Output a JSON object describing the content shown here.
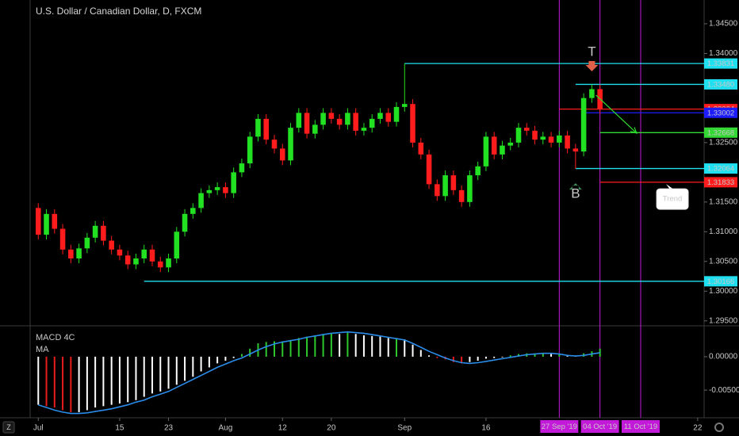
{
  "chart_data": [
    {
      "type": "candlestick",
      "title": "U.S. Dollar / Canadian Dollar, D, FXCM",
      "colors": {
        "up": "#22e022",
        "down": "#ff1c1c"
      },
      "open": [
        1.314,
        1.3095,
        1.313,
        1.3105,
        1.307,
        1.3055,
        1.3072,
        1.309,
        1.311,
        1.3085,
        1.307,
        1.306,
        1.3045,
        1.3055,
        1.307,
        1.305,
        1.304,
        1.3055,
        1.31,
        1.313,
        1.314,
        1.3165,
        1.317,
        1.3175,
        1.3165,
        1.32,
        1.3215,
        1.326,
        1.329,
        1.3255,
        1.324,
        1.322,
        1.3275,
        1.33,
        1.3265,
        1.328,
        1.33,
        1.329,
        1.328,
        1.33,
        1.327,
        1.3275,
        1.329,
        1.33,
        1.3285,
        1.331,
        1.3315,
        1.325,
        1.323,
        1.318,
        1.316,
        1.3195,
        1.317,
        1.315,
        1.3195,
        1.321,
        1.326,
        1.323,
        1.3245,
        1.325,
        1.3275,
        1.327,
        1.3255,
        1.326,
        1.325,
        1.3262,
        1.324,
        1.3235,
        1.3325,
        1.334
      ],
      "high": [
        1.3148,
        1.3138,
        1.3138,
        1.3113,
        1.3078,
        1.308,
        1.3098,
        1.3118,
        1.3118,
        1.3093,
        1.3078,
        1.3068,
        1.3063,
        1.3078,
        1.3078,
        1.3058,
        1.3063,
        1.3108,
        1.3138,
        1.3148,
        1.3173,
        1.3178,
        1.3183,
        1.3183,
        1.3208,
        1.3223,
        1.3268,
        1.3298,
        1.3298,
        1.3263,
        1.3248,
        1.3283,
        1.3308,
        1.3308,
        1.3288,
        1.3308,
        1.3308,
        1.3298,
        1.3308,
        1.3308,
        1.3283,
        1.3298,
        1.3308,
        1.3308,
        1.3318,
        1.3383,
        1.3323,
        1.3258,
        1.3238,
        1.3188,
        1.3203,
        1.3203,
        1.3178,
        1.3203,
        1.3218,
        1.3268,
        1.3268,
        1.3253,
        1.3258,
        1.3283,
        1.3283,
        1.3278,
        1.3268,
        1.3268,
        1.327,
        1.327,
        1.3248,
        1.3333,
        1.3348,
        1.3348
      ],
      "low": [
        1.3087,
        1.3087,
        1.3097,
        1.3062,
        1.3047,
        1.3047,
        1.3064,
        1.3082,
        1.3077,
        1.3062,
        1.3052,
        1.3037,
        1.3037,
        1.3047,
        1.3042,
        1.3032,
        1.3032,
        1.3047,
        1.3092,
        1.3122,
        1.3132,
        1.3157,
        1.3162,
        1.3157,
        1.3157,
        1.3192,
        1.3207,
        1.3252,
        1.3247,
        1.3232,
        1.3212,
        1.3212,
        1.3267,
        1.3257,
        1.3257,
        1.3272,
        1.3282,
        1.3272,
        1.3272,
        1.3262,
        1.3262,
        1.3267,
        1.3282,
        1.3277,
        1.3277,
        1.3302,
        1.3242,
        1.3222,
        1.3172,
        1.3152,
        1.3152,
        1.3162,
        1.3142,
        1.3142,
        1.3187,
        1.3202,
        1.3222,
        1.3222,
        1.3237,
        1.3242,
        1.3262,
        1.3247,
        1.3247,
        1.3242,
        1.3242,
        1.3232,
        1.3206,
        1.3227,
        1.3317,
        1.3298
      ],
      "close": [
        1.3095,
        1.313,
        1.3105,
        1.307,
        1.3055,
        1.3072,
        1.309,
        1.311,
        1.3085,
        1.307,
        1.306,
        1.3045,
        1.3055,
        1.307,
        1.305,
        1.304,
        1.3055,
        1.31,
        1.313,
        1.314,
        1.3165,
        1.317,
        1.3175,
        1.3165,
        1.32,
        1.3215,
        1.326,
        1.329,
        1.3255,
        1.324,
        1.322,
        1.3275,
        1.33,
        1.3265,
        1.328,
        1.33,
        1.329,
        1.328,
        1.33,
        1.327,
        1.3275,
        1.329,
        1.33,
        1.3285,
        1.331,
        1.3315,
        1.325,
        1.323,
        1.318,
        1.316,
        1.3195,
        1.317,
        1.315,
        1.3195,
        1.321,
        1.326,
        1.323,
        1.3245,
        1.325,
        1.3275,
        1.327,
        1.3255,
        1.326,
        1.325,
        1.3262,
        1.324,
        1.3235,
        1.3325,
        1.334,
        1.3306
      ],
      "xlim": [
        -1,
        81.5
      ],
      "xticks": [
        {
          "value": 0,
          "label": "Jul"
        },
        {
          "value": 10,
          "label": "15"
        },
        {
          "value": 16,
          "label": "23"
        },
        {
          "value": 23,
          "label": "Aug"
        },
        {
          "value": 30,
          "label": "12"
        },
        {
          "value": 36,
          "label": "20"
        },
        {
          "value": 45,
          "label": "Sep"
        },
        {
          "value": 55,
          "label": "16"
        },
        {
          "value": 81,
          "label": "22"
        }
      ],
      "ylim": [
        1.2943,
        1.349
      ],
      "yticks": [
        {
          "value": 1.345,
          "label": "1.34500"
        },
        {
          "value": 1.34,
          "label": "1.34000"
        },
        {
          "value": 1.325,
          "label": "1.32500"
        },
        {
          "value": 1.315,
          "label": "1.31500"
        },
        {
          "value": 1.31,
          "label": "1.31000"
        },
        {
          "value": 1.305,
          "label": "1.30500"
        },
        {
          "value": 1.3,
          "label": "1.30000"
        },
        {
          "value": 1.295,
          "label": "1.29500"
        }
      ],
      "levels": [
        {
          "value": 1.33831,
          "from": 45,
          "color": "#1fe0f0"
        },
        {
          "value": 1.3348,
          "label": "1.33480",
          "from": 66,
          "color": "#1fe0f0"
        },
        {
          "value": 1.33064,
          "from": 64,
          "color": "#ff1c1c"
        },
        {
          "value": 1.33002,
          "from": 67,
          "color": "#1c1cff"
        },
        {
          "value": 1.32668,
          "from": 69,
          "color": "#34d834"
        },
        {
          "value": 1.32064,
          "from": 66,
          "color": "#1fe0f0"
        },
        {
          "value": 1.31833,
          "from": 69,
          "color": "#ff1c1c"
        },
        {
          "value": 1.30166,
          "from": 13,
          "color": "#1fe0f0"
        }
      ],
      "markers": [
        {
          "x": 64,
          "label": "27 Sep '19"
        },
        {
          "x": 69,
          "label": "04 Oct '19"
        },
        {
          "x": 74,
          "label": "11 Oct '19"
        }
      ],
      "marker_color": "#c21ad8",
      "annotations": [
        {
          "text": "T",
          "x": 68,
          "y": 1.3402,
          "arrow": "down",
          "color": "#e0604a"
        },
        {
          "text": "B",
          "x": 66,
          "y": 1.3163,
          "arrow": "up",
          "color": "#3d8c5a"
        }
      ],
      "callout": {
        "text": "Trend",
        "x": 77.9,
        "y": 1.3155
      },
      "trend_arrow": {
        "x": [
          68.5,
          73.5
        ],
        "y": [
          1.333,
          1.3266
        ],
        "color": "#2ee02e"
      }
    },
    {
      "type": "macd",
      "title": "MACD 4C",
      "ma_label": "MA",
      "colors": {
        "rise_pos": "#2ec82e",
        "fall_pos": "#ffffff",
        "fall_neg": "#e81c1c",
        "rise_neg": "#ffffff"
      },
      "ma_color": "#2a8ce8",
      "histogram": [
        -0.0072,
        -0.0074,
        -0.0076,
        -0.008,
        -0.0083,
        -0.0083,
        -0.008,
        -0.0076,
        -0.0074,
        -0.0072,
        -0.007,
        -0.0068,
        -0.0065,
        -0.006,
        -0.0055,
        -0.0052,
        -0.0048,
        -0.0042,
        -0.0036,
        -0.003,
        -0.0022,
        -0.0016,
        -0.001,
        -0.0006,
        -0.0002,
        0.0004,
        0.0012,
        0.002,
        0.0022,
        0.0023,
        0.0023,
        0.0025,
        0.0028,
        0.003,
        0.0032,
        0.0034,
        0.0035,
        0.0034,
        0.0036,
        0.0034,
        0.0032,
        0.0031,
        0.003,
        0.0028,
        0.0028,
        0.0026,
        0.0018,
        0.001,
        0.0002,
        -0.0002,
        -0.0004,
        -0.0008,
        -0.001,
        -0.0008,
        -0.0006,
        -0.0003,
        -0.0002,
        -0.0001,
        0.0002,
        0.0004,
        0.0005,
        0.0005,
        0.0005,
        0.0004,
        0.0004,
        0.0002,
        0.0001,
        0.0005,
        0.0008,
        0.0012
      ],
      "ma": [
        -0.0072,
        -0.0076,
        -0.008,
        -0.0083,
        -0.0085,
        -0.0085,
        -0.0084,
        -0.0082,
        -0.008,
        -0.0078,
        -0.0075,
        -0.0072,
        -0.0068,
        -0.0065,
        -0.006,
        -0.0056,
        -0.0052,
        -0.0046,
        -0.004,
        -0.0034,
        -0.0028,
        -0.0022,
        -0.0016,
        -0.0011,
        -0.0006,
        -0.0002,
        0.0004,
        0.001,
        0.0015,
        0.0019,
        0.0022,
        0.0024,
        0.0026,
        0.0029,
        0.0031,
        0.0033,
        0.0035,
        0.0036,
        0.0037,
        0.0036,
        0.0035,
        0.0033,
        0.0031,
        0.0029,
        0.0027,
        0.0025,
        0.002,
        0.0014,
        0.0008,
        0.0003,
        -0.0002,
        -0.0006,
        -0.0009,
        -0.001,
        -0.0009,
        -0.0007,
        -0.0005,
        -0.0003,
        -0.0001,
        0.0001,
        0.0003,
        0.0004,
        0.0005,
        0.0005,
        0.0004,
        0.0002,
        0.0001,
        0.0002,
        0.0004,
        0.0006
      ],
      "ylim": [
        -0.0089,
        0.0045
      ],
      "yticks": [
        {
          "value": 0,
          "label": "0.00000"
        },
        {
          "value": -0.005,
          "label": "-0.00500"
        }
      ]
    }
  ]
}
